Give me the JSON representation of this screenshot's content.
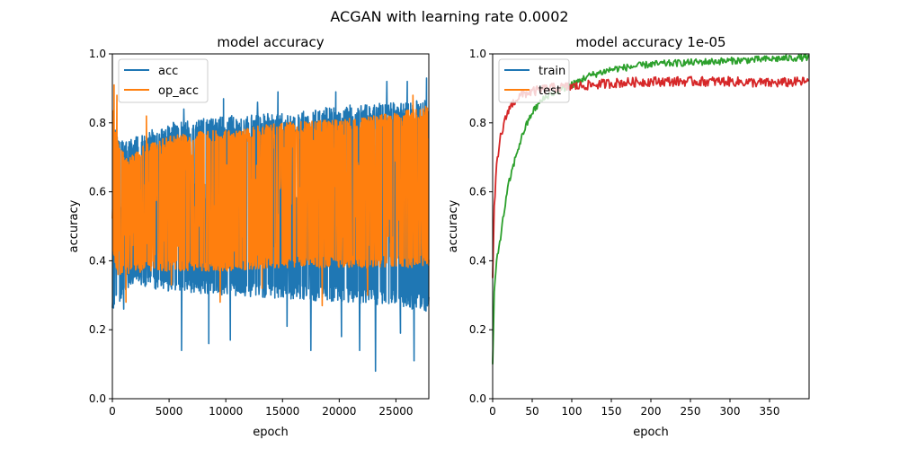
{
  "figure": {
    "suptitle": "ACGAN with learning rate 0.0002"
  },
  "chart_data": [
    {
      "type": "line",
      "title": "model accuracy",
      "xlabel": "epoch",
      "ylabel": "accuracy",
      "xlim": [
        0,
        27900
      ],
      "ylim": [
        0.0,
        1.0
      ],
      "xticks": [
        0,
        5000,
        10000,
        15000,
        20000,
        25000
      ],
      "xtick_labels": [
        "0",
        "5000",
        "10000",
        "15000",
        "20000",
        "25000"
      ],
      "yticks": [
        0.0,
        0.2,
        0.4,
        0.6,
        0.8,
        1.0
      ],
      "ytick_labels": [
        "0.0",
        "0.2",
        "0.4",
        "0.6",
        "0.8",
        "1.0"
      ],
      "grid": false,
      "legend": {
        "placement": "upper-left"
      },
      "series": [
        {
          "name": "acc",
          "color": "#1f77b4",
          "noisy": true,
          "x_step": 25,
          "band": {
            "x": [
              0,
              1000,
              2000,
              5000,
              10000,
              15000,
              20000,
              25000,
              27900
            ],
            "lo": [
              0.25,
              0.3,
              0.33,
              0.31,
              0.3,
              0.29,
              0.28,
              0.27,
              0.25
            ],
            "hi": [
              0.8,
              0.74,
              0.76,
              0.8,
              0.82,
              0.83,
              0.85,
              0.86,
              0.87
            ]
          },
          "spikes": [
            [
              1000,
              0.26
            ],
            [
              6100,
              0.14
            ],
            [
              6300,
              0.84
            ],
            [
              8500,
              0.16
            ],
            [
              9800,
              0.87
            ],
            [
              10400,
              0.17
            ],
            [
              12800,
              0.86
            ],
            [
              14600,
              0.89
            ],
            [
              15400,
              0.21
            ],
            [
              17500,
              0.14
            ],
            [
              19700,
              0.89
            ],
            [
              20200,
              0.18
            ],
            [
              21800,
              0.14
            ],
            [
              23200,
              0.08
            ],
            [
              24200,
              0.92
            ],
            [
              25400,
              0.19
            ],
            [
              26000,
              0.92
            ],
            [
              26600,
              0.11
            ],
            [
              27700,
              0.93
            ]
          ]
        },
        {
          "name": "op_acc",
          "color": "#ff7f0e",
          "noisy": true,
          "x_step": 25,
          "band": {
            "x": [
              0,
              500,
              1500,
              3000,
              6000,
              10000,
              15000,
              20000,
              25000,
              27900
            ],
            "lo": [
              0.42,
              0.36,
              0.36,
              0.37,
              0.37,
              0.37,
              0.38,
              0.38,
              0.38,
              0.38
            ],
            "hi": [
              0.86,
              0.74,
              0.7,
              0.74,
              0.77,
              0.78,
              0.8,
              0.81,
              0.83,
              0.85
            ]
          },
          "spikes": [
            [
              150,
              0.91
            ],
            [
              400,
              0.88
            ],
            [
              1200,
              0.28
            ],
            [
              3000,
              0.82
            ],
            [
              5200,
              0.33
            ],
            [
              9500,
              0.28
            ],
            [
              13200,
              0.32
            ],
            [
              18500,
              0.27
            ],
            [
              22500,
              0.3
            ],
            [
              26500,
              0.88
            ]
          ]
        }
      ]
    },
    {
      "type": "line",
      "title": "model accuracy 1e-05",
      "xlabel": "epoch",
      "ylabel": "accuracy",
      "xlim": [
        0,
        400
      ],
      "ylim": [
        0.0,
        1.0
      ],
      "xticks": [
        0,
        50,
        100,
        150,
        200,
        250,
        300,
        350
      ],
      "xtick_labels": [
        "0",
        "50",
        "100",
        "150",
        "200",
        "250",
        "300",
        "350"
      ],
      "yticks": [
        0.0,
        0.2,
        0.4,
        0.6,
        0.8,
        1.0
      ],
      "ytick_labels": [
        "0.0",
        "0.2",
        "0.4",
        "0.6",
        "0.8",
        "1.0"
      ],
      "grid": false,
      "legend": {
        "placement": "upper-left",
        "entries": [
          {
            "name": "train",
            "color": "#1f77b4"
          },
          {
            "name": "test",
            "color": "#ff7f0e"
          }
        ]
      },
      "series": [
        {
          "color": "#2ca02c",
          "noise": 0.01,
          "x": [
            0,
            2,
            5,
            10,
            15,
            20,
            30,
            40,
            50,
            60,
            70,
            80,
            90,
            100,
            120,
            150,
            200,
            250,
            300,
            350,
            399
          ],
          "y": [
            0.1,
            0.3,
            0.4,
            0.47,
            0.55,
            0.62,
            0.71,
            0.78,
            0.83,
            0.86,
            0.88,
            0.89,
            0.9,
            0.91,
            0.935,
            0.955,
            0.97,
            0.975,
            0.98,
            0.985,
            0.99
          ]
        },
        {
          "color": "#d62728",
          "noise": 0.01,
          "x": [
            0,
            2,
            5,
            10,
            15,
            20,
            30,
            40,
            50,
            70,
            100,
            150,
            200,
            250,
            300,
            350,
            399
          ],
          "y": [
            0.35,
            0.55,
            0.67,
            0.76,
            0.8,
            0.84,
            0.87,
            0.885,
            0.89,
            0.9,
            0.905,
            0.915,
            0.92,
            0.92,
            0.92,
            0.915,
            0.92
          ]
        }
      ]
    }
  ]
}
